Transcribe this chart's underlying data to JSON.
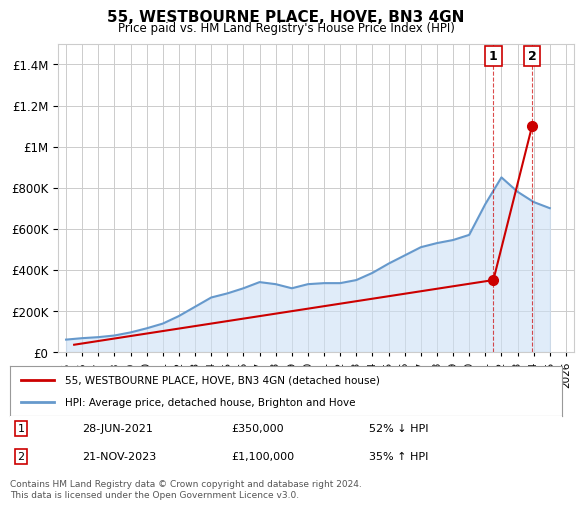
{
  "title": "55, WESTBOURNE PLACE, HOVE, BN3 4GN",
  "subtitle": "Price paid vs. HM Land Registry's House Price Index (HPI)",
  "footnote": "Contains HM Land Registry data © Crown copyright and database right 2024.\nThis data is licensed under the Open Government Licence v3.0.",
  "legend_label_red": "55, WESTBOURNE PLACE, HOVE, BN3 4GN (detached house)",
  "legend_label_blue": "HPI: Average price, detached house, Brighton and Hove",
  "annotation1_label": "1",
  "annotation1_date": "28-JUN-2021",
  "annotation1_price": "£350,000",
  "annotation1_hpi": "52% ↓ HPI",
  "annotation2_label": "2",
  "annotation2_date": "21-NOV-2023",
  "annotation2_price": "£1,100,000",
  "annotation2_hpi": "35% ↑ HPI",
  "ylim": [
    0,
    1500000
  ],
  "yticks": [
    0,
    200000,
    400000,
    600000,
    800000,
    1000000,
    1200000,
    1400000
  ],
  "color_red": "#cc0000",
  "color_blue": "#6699cc",
  "color_blue_fill": "#cce0f5",
  "background_color": "#ffffff",
  "grid_color": "#cccccc",
  "hpi_years": [
    1995,
    1996,
    1997,
    1998,
    1999,
    2000,
    2001,
    2002,
    2003,
    2004,
    2005,
    2006,
    2007,
    2008,
    2009,
    2010,
    2011,
    2012,
    2013,
    2014,
    2015,
    2016,
    2017,
    2018,
    2019,
    2020,
    2021,
    2022,
    2023,
    2024,
    2025
  ],
  "hpi_values": [
    60000,
    67000,
    72000,
    80000,
    95000,
    115000,
    138000,
    175000,
    220000,
    265000,
    285000,
    310000,
    340000,
    330000,
    310000,
    330000,
    335000,
    335000,
    350000,
    385000,
    430000,
    470000,
    510000,
    530000,
    545000,
    570000,
    720000,
    850000,
    780000,
    730000,
    700000
  ],
  "sale1_x": 1995.5,
  "sale1_y": 35000,
  "sale2_x": 2021.5,
  "sale2_y": 350000,
  "sale3_x": 2023.9,
  "sale3_y": 1100000,
  "xmin": 1994.5,
  "xmax": 2026.5,
  "xticks": [
    1995,
    1996,
    1997,
    1998,
    1999,
    2000,
    2001,
    2002,
    2003,
    2004,
    2005,
    2006,
    2007,
    2008,
    2009,
    2010,
    2011,
    2012,
    2013,
    2014,
    2015,
    2016,
    2017,
    2018,
    2019,
    2020,
    2021,
    2022,
    2023,
    2024,
    2025,
    2026
  ]
}
